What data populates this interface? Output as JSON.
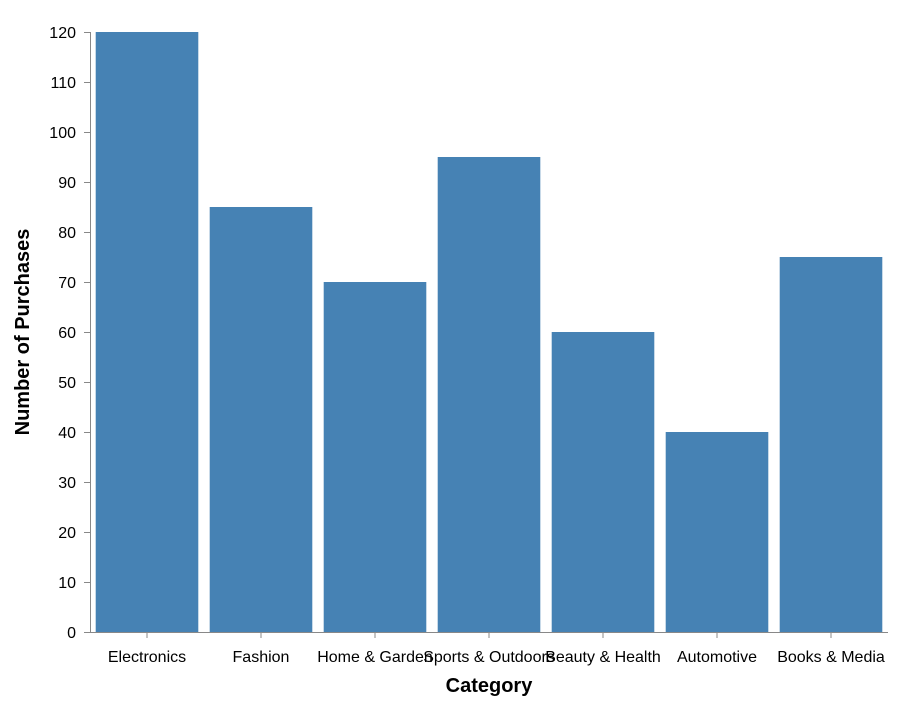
{
  "chart_data": {
    "type": "bar",
    "title": "",
    "xlabel": "Category",
    "ylabel": "Number of Purchases",
    "categories": [
      "Electronics",
      "Fashion",
      "Home & Garden",
      "Sports & Outdoors",
      "Beauty & Health",
      "Automotive",
      "Books & Media"
    ],
    "values": [
      120,
      85,
      70,
      95,
      60,
      40,
      75
    ],
    "ylim": [
      0,
      120
    ],
    "yticks": [
      0,
      10,
      20,
      30,
      40,
      50,
      60,
      70,
      80,
      90,
      100,
      110,
      120
    ],
    "grid": false,
    "legend": "none",
    "bar_color": "#4682b4"
  }
}
